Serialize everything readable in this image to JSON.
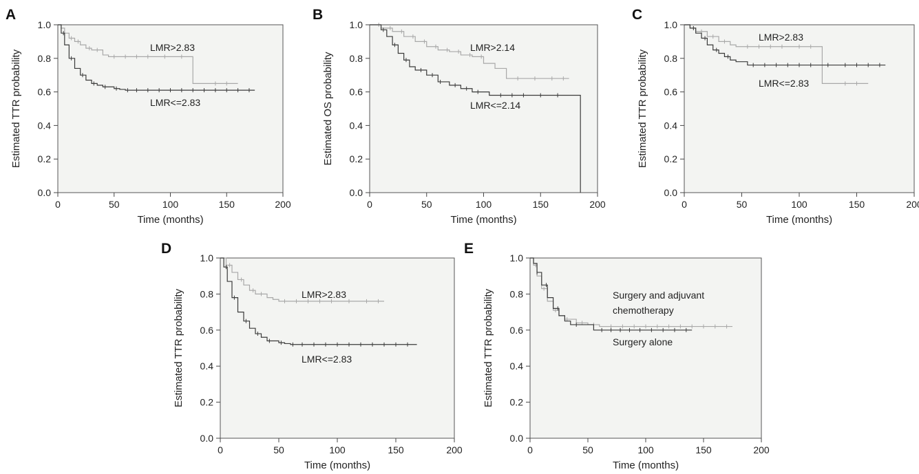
{
  "chart_data": [
    {
      "panel": "A",
      "type": "line",
      "xlabel": "Time (months)",
      "ylabel": "Estimated TTR probability",
      "xlim": [
        0,
        200
      ],
      "ylim": [
        0,
        1
      ],
      "xticks": [
        0,
        50,
        100,
        150,
        200
      ],
      "yticks": [
        "0.0",
        "0.2",
        "0.4",
        "0.6",
        "0.8",
        "1.0"
      ],
      "annotations": [
        "LMR>2.83",
        "LMR<=2.83"
      ],
      "colors": {
        "high": "#a8a8a8",
        "low": "#3a3a3a"
      },
      "series": [
        {
          "x": [
            0,
            3,
            6,
            10,
            15,
            20,
            25,
            30,
            40,
            45,
            120,
            120,
            160
          ],
          "y": [
            1.0,
            0.98,
            0.95,
            0.92,
            0.9,
            0.88,
            0.86,
            0.85,
            0.82,
            0.81,
            0.81,
            0.65,
            0.65
          ],
          "censored": [
            12,
            18,
            28,
            35,
            50,
            60,
            70,
            80,
            95,
            110,
            140,
            150
          ]
        },
        {
          "x": [
            0,
            3,
            6,
            10,
            15,
            20,
            25,
            30,
            35,
            40,
            50,
            55,
            60,
            175
          ],
          "y": [
            1.0,
            0.95,
            0.88,
            0.8,
            0.74,
            0.7,
            0.67,
            0.65,
            0.64,
            0.63,
            0.62,
            0.615,
            0.61,
            0.61
          ],
          "censored": [
            5,
            12,
            22,
            32,
            42,
            52,
            62,
            70,
            80,
            90,
            100,
            110,
            120,
            130,
            140,
            150,
            160,
            170
          ]
        }
      ]
    },
    {
      "panel": "B",
      "type": "line",
      "xlabel": "Time (months)",
      "ylabel": "Estimated OS probability",
      "xlim": [
        0,
        200
      ],
      "ylim": [
        0,
        1
      ],
      "xticks": [
        0,
        50,
        100,
        150,
        200
      ],
      "yticks": [
        "0.0",
        "0.2",
        "0.4",
        "0.6",
        "0.8",
        "1.0"
      ],
      "annotations": [
        "LMR>2.14",
        "LMR<=2.14"
      ],
      "colors": {
        "high": "#a8a8a8",
        "low": "#3a3a3a"
      },
      "series": [
        {
          "x": [
            0,
            10,
            20,
            30,
            40,
            50,
            60,
            70,
            80,
            90,
            100,
            110,
            120,
            120,
            175
          ],
          "y": [
            1.0,
            0.98,
            0.96,
            0.93,
            0.9,
            0.87,
            0.85,
            0.84,
            0.82,
            0.81,
            0.77,
            0.74,
            0.72,
            0.68,
            0.68
          ],
          "censored": [
            8,
            18,
            28,
            38,
            48,
            58,
            68,
            78,
            88,
            98,
            130,
            145,
            160,
            170
          ]
        },
        {
          "x": [
            0,
            10,
            15,
            20,
            25,
            30,
            35,
            40,
            50,
            60,
            70,
            80,
            90,
            105,
            110,
            185,
            185
          ],
          "y": [
            1.0,
            0.97,
            0.93,
            0.88,
            0.83,
            0.79,
            0.75,
            0.73,
            0.7,
            0.66,
            0.64,
            0.62,
            0.6,
            0.58,
            0.58,
            0.58,
            0.0
          ],
          "censored": [
            12,
            22,
            32,
            45,
            55,
            62,
            75,
            85,
            95,
            115,
            125,
            135,
            150,
            165
          ]
        }
      ]
    },
    {
      "panel": "C",
      "type": "line",
      "xlabel": "Time (months)",
      "ylabel": "Estimated TTR probability",
      "xlim": [
        0,
        200
      ],
      "ylim": [
        0,
        1
      ],
      "xticks": [
        0,
        50,
        100,
        150,
        200
      ],
      "yticks": [
        "0.0",
        "0.2",
        "0.4",
        "0.6",
        "0.8",
        "1.0"
      ],
      "annotations": [
        "LMR>2.83",
        "LMR<=2.83"
      ],
      "colors": {
        "high": "#a8a8a8",
        "low": "#3a3a3a"
      },
      "series": [
        {
          "x": [
            0,
            5,
            10,
            20,
            30,
            40,
            45,
            120,
            120,
            160
          ],
          "y": [
            1.0,
            0.98,
            0.96,
            0.93,
            0.9,
            0.88,
            0.87,
            0.87,
            0.65,
            0.65
          ],
          "censored": [
            8,
            15,
            25,
            35,
            55,
            65,
            75,
            85,
            100,
            110,
            140,
            150
          ]
        },
        {
          "x": [
            0,
            5,
            10,
            15,
            20,
            25,
            30,
            35,
            40,
            45,
            55,
            175
          ],
          "y": [
            1.0,
            0.98,
            0.95,
            0.92,
            0.88,
            0.85,
            0.83,
            0.81,
            0.79,
            0.78,
            0.76,
            0.76
          ],
          "censored": [
            8,
            18,
            28,
            38,
            60,
            70,
            80,
            90,
            100,
            110,
            125,
            140,
            150,
            160,
            170
          ]
        }
      ]
    },
    {
      "panel": "D",
      "type": "line",
      "xlabel": "Time (months)",
      "ylabel": "Estimated TTR probability",
      "xlim": [
        0,
        200
      ],
      "ylim": [
        0,
        1
      ],
      "xticks": [
        0,
        50,
        100,
        150,
        200
      ],
      "yticks": [
        "0.0",
        "0.2",
        "0.4",
        "0.6",
        "0.8",
        "1.0"
      ],
      "annotations": [
        "LMR>2.83",
        "LMR<=2.83"
      ],
      "colors": {
        "high": "#a8a8a8",
        "low": "#3a3a3a"
      },
      "series": [
        {
          "x": [
            0,
            5,
            10,
            15,
            20,
            25,
            30,
            40,
            45,
            50,
            140
          ],
          "y": [
            1.0,
            0.96,
            0.92,
            0.88,
            0.85,
            0.82,
            0.8,
            0.78,
            0.77,
            0.76,
            0.76
          ],
          "censored": [
            8,
            18,
            28,
            35,
            55,
            65,
            75,
            85,
            95,
            110,
            125,
            135
          ]
        },
        {
          "x": [
            0,
            3,
            6,
            10,
            15,
            20,
            25,
            30,
            35,
            40,
            50,
            55,
            60,
            168
          ],
          "y": [
            1.0,
            0.95,
            0.87,
            0.78,
            0.7,
            0.65,
            0.61,
            0.58,
            0.56,
            0.54,
            0.53,
            0.525,
            0.52,
            0.52
          ],
          "censored": [
            5,
            12,
            22,
            32,
            42,
            52,
            62,
            70,
            80,
            90,
            100,
            110,
            120,
            130,
            140,
            150,
            160
          ]
        }
      ]
    },
    {
      "panel": "E",
      "type": "line",
      "xlabel": "Time (months)",
      "ylabel": "Estimated TTR probability",
      "xlim": [
        0,
        200
      ],
      "ylim": [
        0,
        1
      ],
      "xticks": [
        0,
        50,
        100,
        150,
        200
      ],
      "yticks": [
        "0.0",
        "0.2",
        "0.4",
        "0.6",
        "0.8",
        "1.0"
      ],
      "annotations": [
        "Surgery and adjuvant",
        "chemotherapy",
        "Surgery alone"
      ],
      "colors": {
        "high": "#a8a8a8",
        "low": "#3a3a3a"
      },
      "series": [
        {
          "x": [
            0,
            3,
            6,
            10,
            15,
            20,
            25,
            30,
            40,
            50,
            60,
            175
          ],
          "y": [
            1.0,
            0.96,
            0.9,
            0.83,
            0.76,
            0.71,
            0.68,
            0.66,
            0.64,
            0.63,
            0.62,
            0.62
          ],
          "censored": [
            5,
            12,
            22,
            32,
            45,
            55,
            70,
            80,
            90,
            100,
            110,
            120,
            130,
            140,
            150,
            160,
            170
          ]
        },
        {
          "x": [
            0,
            3,
            6,
            10,
            15,
            20,
            25,
            30,
            35,
            55,
            140
          ],
          "y": [
            1.0,
            0.97,
            0.92,
            0.85,
            0.78,
            0.72,
            0.68,
            0.65,
            0.63,
            0.6,
            0.6
          ],
          "censored": [
            6,
            14,
            24,
            40,
            62,
            70,
            78,
            86,
            95,
            105,
            115,
            125,
            135
          ]
        }
      ]
    }
  ]
}
